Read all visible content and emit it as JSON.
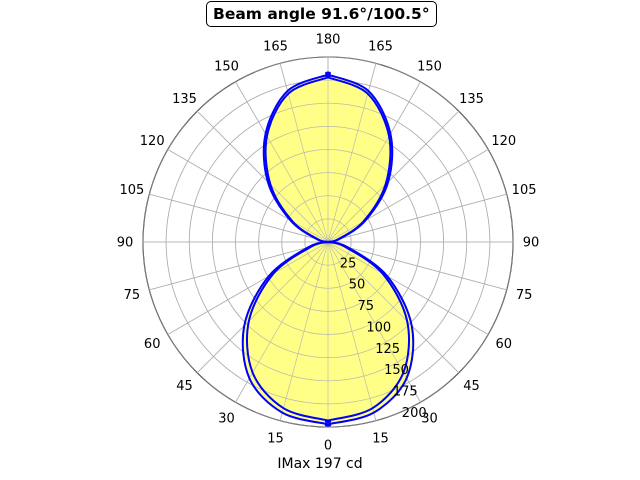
{
  "chart_data": {
    "type": "polar",
    "title": "Beam angle 91.6°/100.5°",
    "xlabel": "IMax 197 cd",
    "angular_tick_labels": [
      "0",
      "15",
      "30",
      "45",
      "60",
      "75",
      "90",
      "105",
      "120",
      "135",
      "150",
      "165",
      "180",
      "165",
      "150",
      "135",
      "120",
      "105",
      "90",
      "75",
      "60",
      "45",
      "30",
      "15"
    ],
    "radial_ticks": [
      25,
      50,
      75,
      100,
      125,
      150,
      175,
      200
    ],
    "radial_tick_labels": [
      "25",
      "50",
      "75",
      "100",
      "125",
      "150",
      "175",
      "200"
    ],
    "rlim": [
      0,
      200
    ],
    "grid": true,
    "fill_color": "#ffff88",
    "series": [
      {
        "color": "#0000ff",
        "lower_lobe": {
          "angles_deg": [
            0,
            15,
            30,
            45,
            60,
            75,
            90
          ],
          "intensity_cd": [
            193,
            186,
            163,
            121,
            68,
            18,
            0
          ]
        },
        "upper_lobe": {
          "angles_deg": [
            90,
            105,
            120,
            135,
            150,
            165,
            180
          ],
          "intensity_cd": [
            0,
            11,
            44,
            88,
            132,
            166,
            178
          ]
        }
      },
      {
        "color": "#0000ff",
        "lower_lobe": {
          "angles_deg": [
            0,
            15,
            30,
            45,
            60,
            75,
            90
          ],
          "intensity_cd": [
            197,
            191,
            170,
            128,
            74,
            22,
            0
          ]
        },
        "upper_lobe": {
          "angles_deg": [
            90,
            105,
            120,
            135,
            150,
            165,
            180
          ],
          "intensity_cd": [
            0,
            13,
            47,
            92,
            135,
            169,
            181
          ]
        }
      }
    ]
  }
}
